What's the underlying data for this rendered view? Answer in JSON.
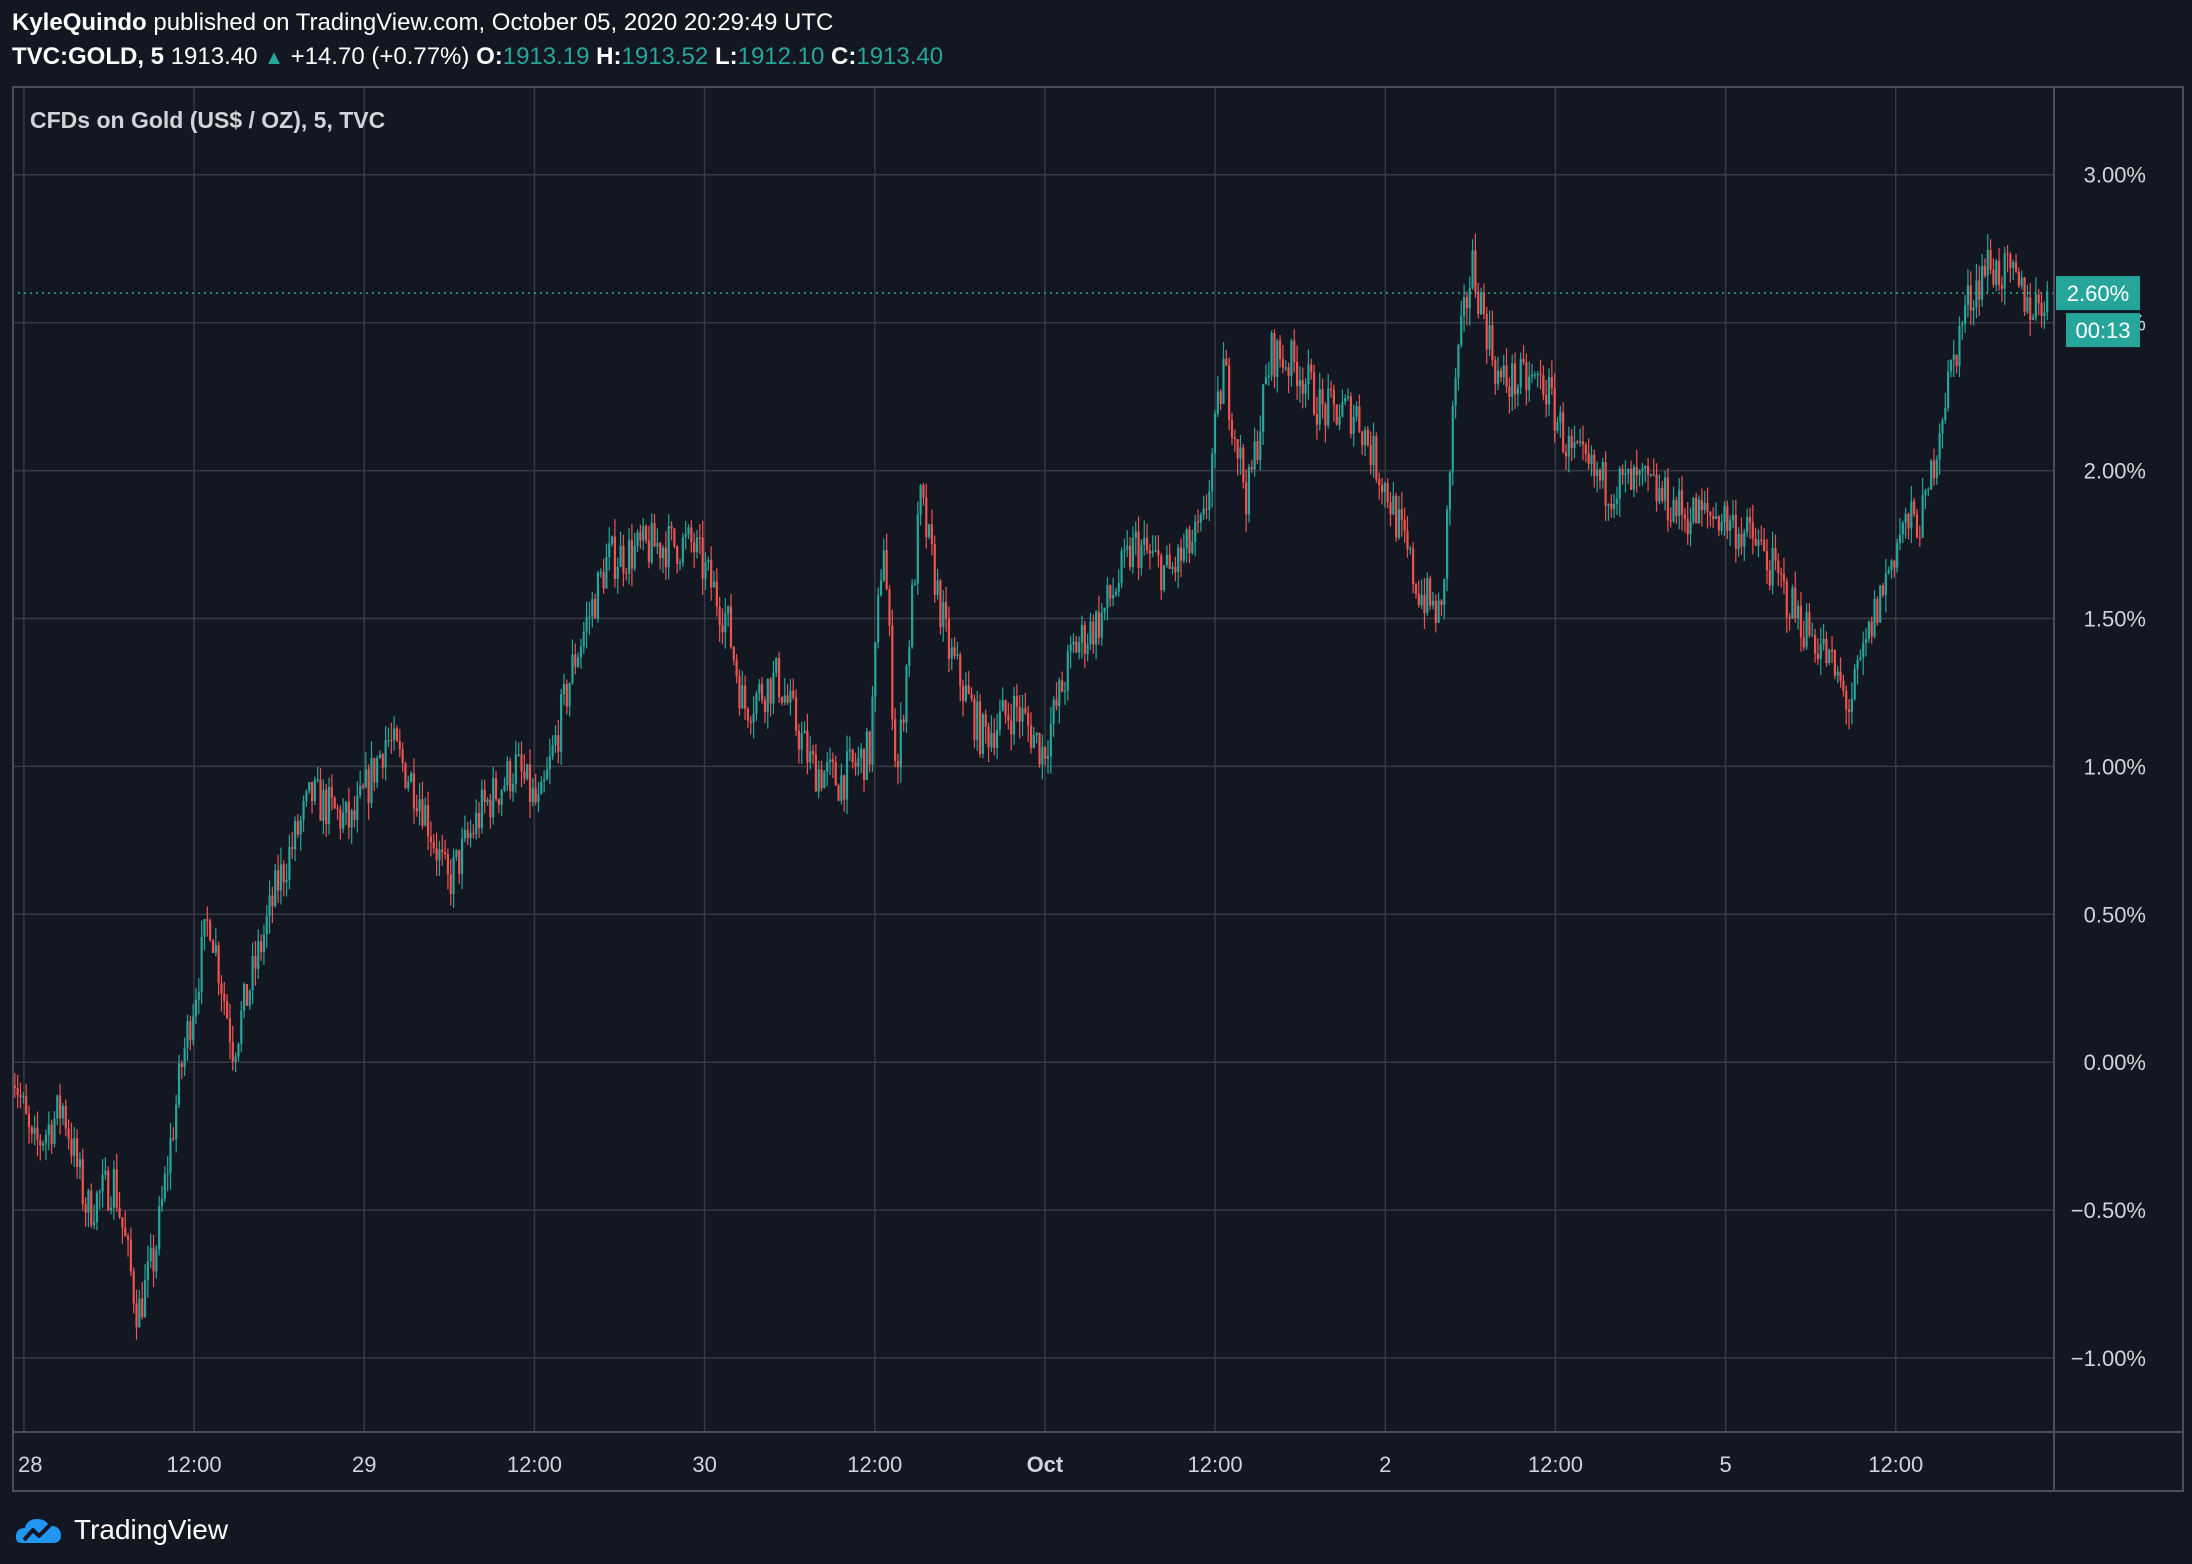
{
  "header": {
    "author": "KyleQuindo",
    "published_text": "published on TradingView.com, October 05, 2020 20:29:49 UTC",
    "symbol": "TVC:GOLD, 5",
    "price": "1913.40",
    "change": "+14.70 (+0.77%)",
    "open_label": "O:",
    "open": "1913.19",
    "high_label": "H:",
    "high": "1913.52",
    "low_label": "L:",
    "low": "1912.10",
    "close_label": "C:",
    "close": "1913.40"
  },
  "colors": {
    "up": "#26a69a",
    "down": "#ef5350",
    "background": "#131722",
    "grid": "#363a45",
    "text": "#d1d4dc"
  },
  "footer": {
    "brand": "TradingView"
  },
  "chart_data": {
    "type": "candlestick",
    "title": "CFDs on Gold (US$ / OZ), 5, TVC",
    "y_axis": {
      "unit": "percent",
      "ticks": [
        3.0,
        2.5,
        2.0,
        1.5,
        1.0,
        0.5,
        0.0,
        -0.5,
        -1.0
      ],
      "tick_labels": [
        "3.00%",
        "2.50%",
        "2.00%",
        "1.50%",
        "1.00%",
        "0.50%",
        "0.00%",
        "−0.50%",
        "−1.00%"
      ],
      "range": [
        -1.25,
        3.3
      ]
    },
    "x_axis": {
      "tick_labels": [
        "28",
        "12:00",
        "29",
        "12:00",
        "30",
        "12:00",
        "Oct",
        "12:00",
        "2",
        "12:00",
        "5",
        "12:00"
      ],
      "bold_labels": [
        "Oct"
      ],
      "range": [
        "2020-09-28 00:00",
        "2020-10-05 20:30"
      ]
    },
    "grid": true,
    "current_value_label": "2.60%",
    "current_value": 2.6,
    "countdown_label": "00:13",
    "series_path": [
      {
        "t": 0,
        "v": 0.0
      },
      {
        "t": 0.06,
        "v": -0.3
      },
      {
        "t": 0.15,
        "v": -0.15
      },
      {
        "t": 0.22,
        "v": -0.5
      },
      {
        "t": 0.3,
        "v": -0.4
      },
      {
        "t": 0.37,
        "v": -0.85
      },
      {
        "t": 0.42,
        "v": -0.65
      },
      {
        "t": 0.5,
        "v": 0.0
      },
      {
        "t": 0.58,
        "v": 0.5
      },
      {
        "t": 0.65,
        "v": 0.05
      },
      {
        "t": 0.78,
        "v": 0.6
      },
      {
        "t": 0.88,
        "v": 0.9
      },
      {
        "t": 1.0,
        "v": 0.8
      },
      {
        "t": 1.1,
        "v": 1.1
      },
      {
        "t": 1.2,
        "v": 0.9
      },
      {
        "t": 1.28,
        "v": 0.6
      },
      {
        "t": 1.38,
        "v": 0.85
      },
      {
        "t": 1.48,
        "v": 1.0
      },
      {
        "t": 1.55,
        "v": 0.85
      },
      {
        "t": 1.65,
        "v": 1.35
      },
      {
        "t": 1.75,
        "v": 1.7
      },
      {
        "t": 1.9,
        "v": 1.75
      },
      {
        "t": 2.0,
        "v": 1.75
      },
      {
        "t": 2.1,
        "v": 1.5
      },
      {
        "t": 2.15,
        "v": 1.2
      },
      {
        "t": 2.25,
        "v": 1.3
      },
      {
        "t": 2.35,
        "v": 1.0
      },
      {
        "t": 2.43,
        "v": 0.95
      },
      {
        "t": 2.52,
        "v": 1.05
      },
      {
        "t": 2.56,
        "v": 1.8
      },
      {
        "t": 2.6,
        "v": 0.95
      },
      {
        "t": 2.67,
        "v": 1.9
      },
      {
        "t": 2.75,
        "v": 1.4
      },
      {
        "t": 2.85,
        "v": 1.1
      },
      {
        "t": 2.95,
        "v": 1.2
      },
      {
        "t": 3.03,
        "v": 1.05
      },
      {
        "t": 3.12,
        "v": 1.4
      },
      {
        "t": 3.2,
        "v": 1.5
      },
      {
        "t": 3.3,
        "v": 1.75
      },
      {
        "t": 3.4,
        "v": 1.65
      },
      {
        "t": 3.5,
        "v": 1.8
      },
      {
        "t": 3.56,
        "v": 2.35
      },
      {
        "t": 3.63,
        "v": 1.9
      },
      {
        "t": 3.7,
        "v": 2.4
      },
      {
        "t": 3.78,
        "v": 2.35
      },
      {
        "t": 3.85,
        "v": 2.2
      },
      {
        "t": 3.95,
        "v": 2.2
      },
      {
        "t": 4.05,
        "v": 1.9
      },
      {
        "t": 4.13,
        "v": 1.6
      },
      {
        "t": 4.2,
        "v": 1.5
      },
      {
        "t": 4.24,
        "v": 2.3
      },
      {
        "t": 4.29,
        "v": 2.7
      },
      {
        "t": 4.37,
        "v": 2.3
      },
      {
        "t": 4.5,
        "v": 2.3
      },
      {
        "t": 4.58,
        "v": 2.05
      },
      {
        "t": 4.68,
        "v": 1.95
      },
      {
        "t": 4.8,
        "v": 1.95
      },
      {
        "t": 4.92,
        "v": 1.85
      },
      {
        "t": 5.02,
        "v": 1.85
      },
      {
        "t": 5.13,
        "v": 1.75
      },
      {
        "t": 5.25,
        "v": 1.5
      },
      {
        "t": 5.32,
        "v": 1.4
      },
      {
        "t": 5.4,
        "v": 1.2
      },
      {
        "t": 5.47,
        "v": 1.5
      },
      {
        "t": 5.55,
        "v": 1.8
      },
      {
        "t": 5.62,
        "v": 1.85
      },
      {
        "t": 5.67,
        "v": 2.2
      },
      {
        "t": 5.74,
        "v": 2.55
      },
      {
        "t": 5.8,
        "v": 2.7
      },
      {
        "t": 5.87,
        "v": 2.65
      },
      {
        "t": 5.94,
        "v": 2.55
      },
      {
        "t": 5.98,
        "v": 2.6
      }
    ],
    "x_ticks_t": [
      0,
      0.5,
      1.0,
      1.5,
      2.0,
      2.5,
      3.0,
      3.5,
      4.0,
      4.5,
      5.0,
      5.5
    ]
  }
}
